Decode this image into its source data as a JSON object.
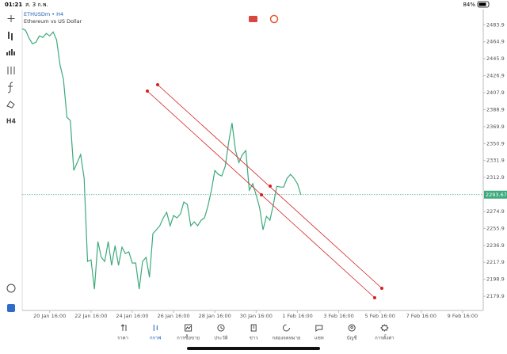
{
  "status_bar": {
    "time": "01:21",
    "date": "ส. 3 ก.พ.",
    "battery": "84%"
  },
  "symbol": {
    "name": "ETHUSDm • H4",
    "description": "Ethereum vs US Dollar"
  },
  "toolbar": {
    "timeframe": "H4"
  },
  "chart_data": {
    "type": "line",
    "color": "#3daa7d",
    "values": [
      2479.5,
      2477.7,
      2468.8,
      2462.6,
      2464.4,
      2471.5,
      2469.7,
      2474.2,
      2471.5,
      2475.9,
      2467.1,
      2438.7,
      2422.8,
      2380.2,
      2376.7,
      2320.8,
      2329.7,
      2338.6,
      2312.0,
      2218.9,
      2220.7,
      2187.9,
      2241.1,
      2223.4,
      2218.9,
      2241.1,
      2214.5,
      2236.6,
      2214.5,
      2234.9,
      2227.8,
      2229.6,
      2217.1,
      2217.1,
      2187.9,
      2218.9,
      2223.4,
      2201.2,
      2250.0,
      2254.4,
      2258.8,
      2267.7,
      2273.9,
      2258.8,
      2270.3,
      2267.7,
      2272.1,
      2285.4,
      2282.7,
      2258.8,
      2263.2,
      2258.8,
      2265.0,
      2267.7,
      2281.0,
      2298.7,
      2320.8,
      2316.4,
      2314.6,
      2325.3,
      2351.9,
      2374.0,
      2343.0,
      2329.7,
      2338.6,
      2343.0,
      2298.7,
      2305.8,
      2293.4,
      2279.2,
      2254.4,
      2269.4,
      2265.0,
      2282.7,
      2303.1,
      2302.2,
      2302.2,
      2312.0,
      2316.4,
      2312.0,
      2305.8,
      2293.7
    ],
    "ylim": [
      2164,
      2501
    ],
    "yticks": [
      2483.9,
      2464.9,
      2445.9,
      2426.9,
      2407.9,
      2388.9,
      2369.9,
      2350.9,
      2331.9,
      2312.9,
      2274.9,
      2255.9,
      2236.9,
      2217.9,
      2198.9,
      2179.9
    ],
    "current_price": 2293.67,
    "xlim": [
      0,
      134
    ],
    "xticks": [
      {
        "value": 8,
        "label": "20 Jan 16:00"
      },
      {
        "value": 20,
        "label": "22 Jan 16:00"
      },
      {
        "value": 32,
        "label": "24 Jan 16:00"
      },
      {
        "value": 44,
        "label": "26 Jan 16:00"
      },
      {
        "value": 56,
        "label": "28 Jan 16:00"
      },
      {
        "value": 68,
        "label": "30 Jan 16:00"
      },
      {
        "value": 80,
        "label": "1 Feb 16:00"
      },
      {
        "value": 92,
        "label": "3 Feb 16:00"
      },
      {
        "value": 104,
        "label": "5 Feb 16:00"
      },
      {
        "value": 116,
        "label": "7 Feb 16:00"
      },
      {
        "value": 128,
        "label": "9 Feb 16:00"
      }
    ]
  },
  "nav": [
    "ราคา",
    "กราฟ",
    "การซื้อขาย",
    "ประวัติ",
    "ข่าว",
    "กล่องจดหมาย",
    "แชท",
    "บัญชี",
    "การตั้งค่า"
  ]
}
